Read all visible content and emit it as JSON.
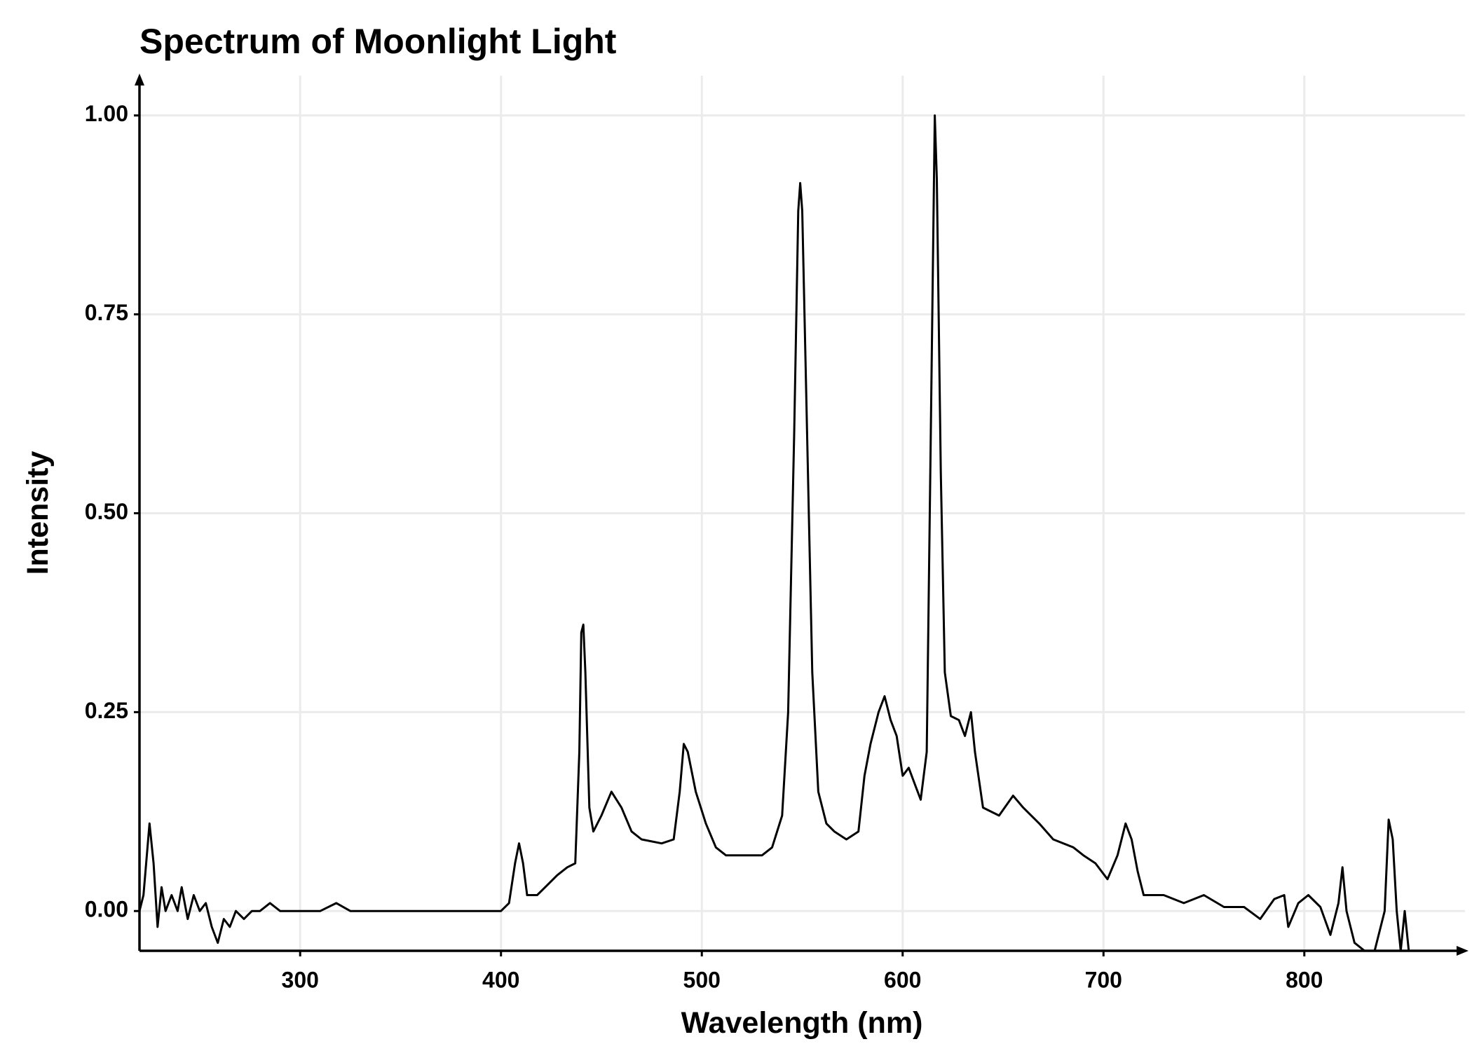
{
  "chart_data": {
    "type": "line",
    "title": "Spectrum of Moonlight Light",
    "x_label": "Wavelength (nm)",
    "y_label": "Intensity",
    "xlim": [
      220,
      880
    ],
    "ylim": [
      -0.05,
      1.05
    ],
    "xticks": [
      300,
      400,
      500,
      600,
      700,
      800
    ],
    "yticks": [
      {
        "value": 0,
        "label": "0.00"
      },
      0.25,
      {
        "value": 0.5,
        "label": "0.50"
      },
      0.75,
      {
        "value": 1,
        "label": "1.00"
      }
    ],
    "grid": true,
    "x": [
      220,
      222,
      225,
      227,
      229,
      231,
      233,
      236,
      239,
      241,
      244,
      247,
      250,
      253,
      256,
      259,
      262,
      265,
      268,
      272,
      276,
      280,
      285,
      290,
      300,
      310,
      318,
      325,
      335,
      350,
      370,
      385,
      400,
      404,
      407,
      409,
      411,
      413,
      418,
      422,
      428,
      433,
      437,
      439,
      440,
      441,
      442,
      444,
      446,
      450,
      455,
      460,
      465,
      470,
      480,
      486,
      489,
      491,
      493,
      497,
      502,
      507,
      512,
      520,
      530,
      535,
      540,
      543,
      546,
      548,
      549,
      550,
      552,
      555,
      558,
      562,
      566,
      572,
      578,
      581,
      584,
      588,
      591,
      594,
      597,
      600,
      603,
      606,
      609,
      612,
      614,
      616,
      617,
      619,
      621,
      624,
      628,
      631,
      634,
      636,
      640,
      648,
      655,
      660,
      668,
      675,
      685,
      690,
      696,
      702,
      707,
      711,
      714,
      717,
      720,
      730,
      740,
      750,
      760,
      770,
      778,
      785,
      790,
      792,
      797,
      802,
      808,
      813,
      817,
      819,
      821,
      825,
      830,
      835,
      840,
      842,
      844,
      846,
      848,
      850,
      852,
      855
    ],
    "series": [
      {
        "name": "Intensity",
        "color": "#000000",
        "values": [
          0.0,
          0.02,
          0.11,
          0.06,
          -0.02,
          0.03,
          0.0,
          0.02,
          0.0,
          0.03,
          -0.01,
          0.02,
          0.0,
          0.01,
          -0.02,
          -0.04,
          -0.01,
          -0.02,
          0.0,
          -0.01,
          0.0,
          0.0,
          0.01,
          0.0,
          0.0,
          0.0,
          0.01,
          0.0,
          0.0,
          0.0,
          0.0,
          0.0,
          0.0,
          0.01,
          0.06,
          0.085,
          0.06,
          0.02,
          0.02,
          0.03,
          0.045,
          0.055,
          0.06,
          0.2,
          0.35,
          0.36,
          0.3,
          0.13,
          0.1,
          0.12,
          0.15,
          0.13,
          0.1,
          0.09,
          0.085,
          0.09,
          0.15,
          0.21,
          0.2,
          0.15,
          0.11,
          0.08,
          0.07,
          0.07,
          0.07,
          0.08,
          0.12,
          0.25,
          0.6,
          0.88,
          0.915,
          0.88,
          0.65,
          0.3,
          0.15,
          0.11,
          0.1,
          0.09,
          0.1,
          0.17,
          0.21,
          0.25,
          0.27,
          0.24,
          0.22,
          0.17,
          0.18,
          0.16,
          0.14,
          0.2,
          0.6,
          1.0,
          0.92,
          0.55,
          0.3,
          0.245,
          0.24,
          0.22,
          0.25,
          0.2,
          0.13,
          0.12,
          0.145,
          0.13,
          0.11,
          0.09,
          0.08,
          0.07,
          0.06,
          0.04,
          0.07,
          0.11,
          0.09,
          0.05,
          0.02,
          0.02,
          0.01,
          0.02,
          0.005,
          0.005,
          -0.01,
          0.015,
          0.02,
          -0.02,
          0.01,
          0.02,
          0.005,
          -0.03,
          0.01,
          0.055,
          0.0,
          -0.04,
          -0.05,
          -0.05,
          0.0,
          0.115,
          0.09,
          0.0,
          -0.05,
          0.0,
          -0.05,
          -0.05
        ]
      }
    ]
  }
}
